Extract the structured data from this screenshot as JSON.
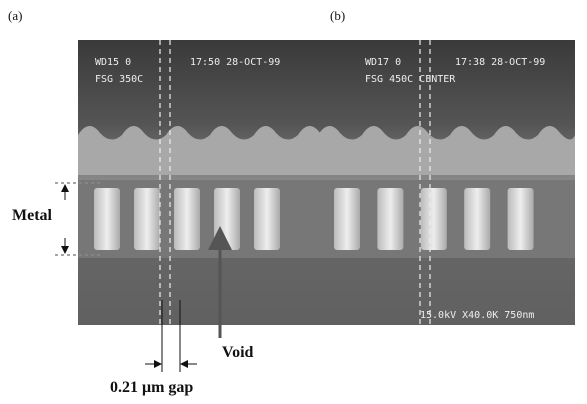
{
  "figure": {
    "panels": [
      {
        "label": "(a)",
        "overlay": [
          "WD15 0",
          "17:50 28-OCT-99",
          "FSG 350C"
        ]
      },
      {
        "label": "(b)",
        "overlay": [
          "WD17 0",
          "17:38 28-OCT-99",
          "FSG 450C CENTER",
          "15.0kV X40.0K 750nm"
        ]
      }
    ],
    "annotations": {
      "metal": "Metal",
      "void": "Void",
      "gap": "0.21 μm gap"
    }
  }
}
